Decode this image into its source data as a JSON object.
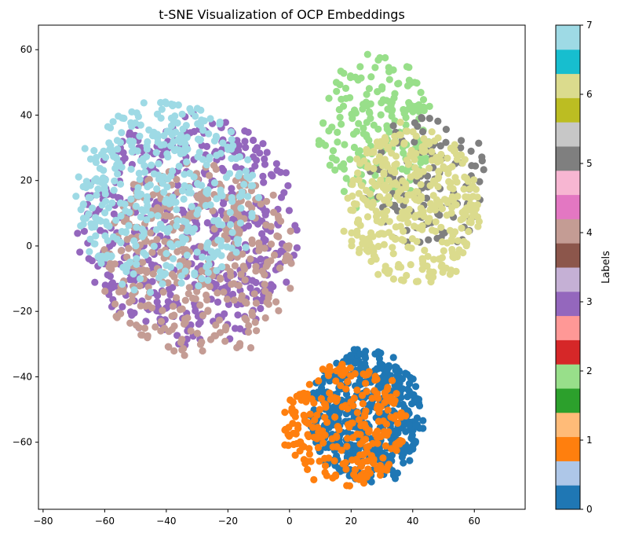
{
  "chart_data": {
    "type": "scatter",
    "title": "t-SNE Visualization of OCP Embeddings",
    "xlabel": "",
    "ylabel": "",
    "xlim": [
      -81.5,
      76.5
    ],
    "ylim": [
      -80.5,
      67.5
    ],
    "xticks": [
      -80,
      -60,
      -40,
      -20,
      0,
      20,
      40,
      60
    ],
    "yticks": [
      -60,
      -40,
      -20,
      0,
      20,
      40,
      60
    ],
    "grid": false,
    "colorbar": {
      "label": "Labels",
      "ticks": [
        0,
        1,
        2,
        3,
        4,
        5,
        6,
        7
      ],
      "range": [
        0,
        7
      ],
      "colormap": "tab20",
      "colors": [
        "#1f77b4",
        "#aec7e8",
        "#ff7f0e",
        "#ffbb78",
        "#2ca02c",
        "#98df8a",
        "#d62728",
        "#ff9896",
        "#9467bd",
        "#c5b0d5",
        "#8c564b",
        "#c49c94",
        "#e377c2",
        "#f7b6d2",
        "#7f7f7f",
        "#c7c7c7",
        "#bcbd22",
        "#dbdb8d",
        "#17becf",
        "#9edae5"
      ]
    },
    "series": [
      {
        "label": 0,
        "color": "#1f77b4",
        "center": [
          25,
          -52
        ],
        "radius": [
          20,
          22
        ],
        "count": 520
      },
      {
        "label": 1,
        "color": "#ff7f0e",
        "center": [
          18,
          -55
        ],
        "radius": [
          22,
          20
        ],
        "count": 260
      },
      {
        "label": 2,
        "color": "#98df8a",
        "center": [
          28,
          35
        ],
        "radius": [
          20,
          25
        ],
        "count": 200
      },
      {
        "label": 3,
        "color": "#9467bd",
        "center": [
          -32,
          5
        ],
        "radius": [
          38,
          38
        ],
        "count": 520
      },
      {
        "label": 4,
        "color": "#c49c94",
        "center": [
          -30,
          -5
        ],
        "radius": [
          34,
          32
        ],
        "count": 380
      },
      {
        "label": 5,
        "color": "#7f7f7f",
        "center": [
          45,
          20
        ],
        "radius": [
          22,
          22
        ],
        "count": 110
      },
      {
        "label": 6,
        "color": "#dbdb8d",
        "center": [
          40,
          12
        ],
        "radius": [
          24,
          26
        ],
        "count": 380
      },
      {
        "label": 7,
        "color": "#9edae5",
        "center": [
          -40,
          15
        ],
        "radius": [
          32,
          32
        ],
        "count": 420
      }
    ]
  }
}
